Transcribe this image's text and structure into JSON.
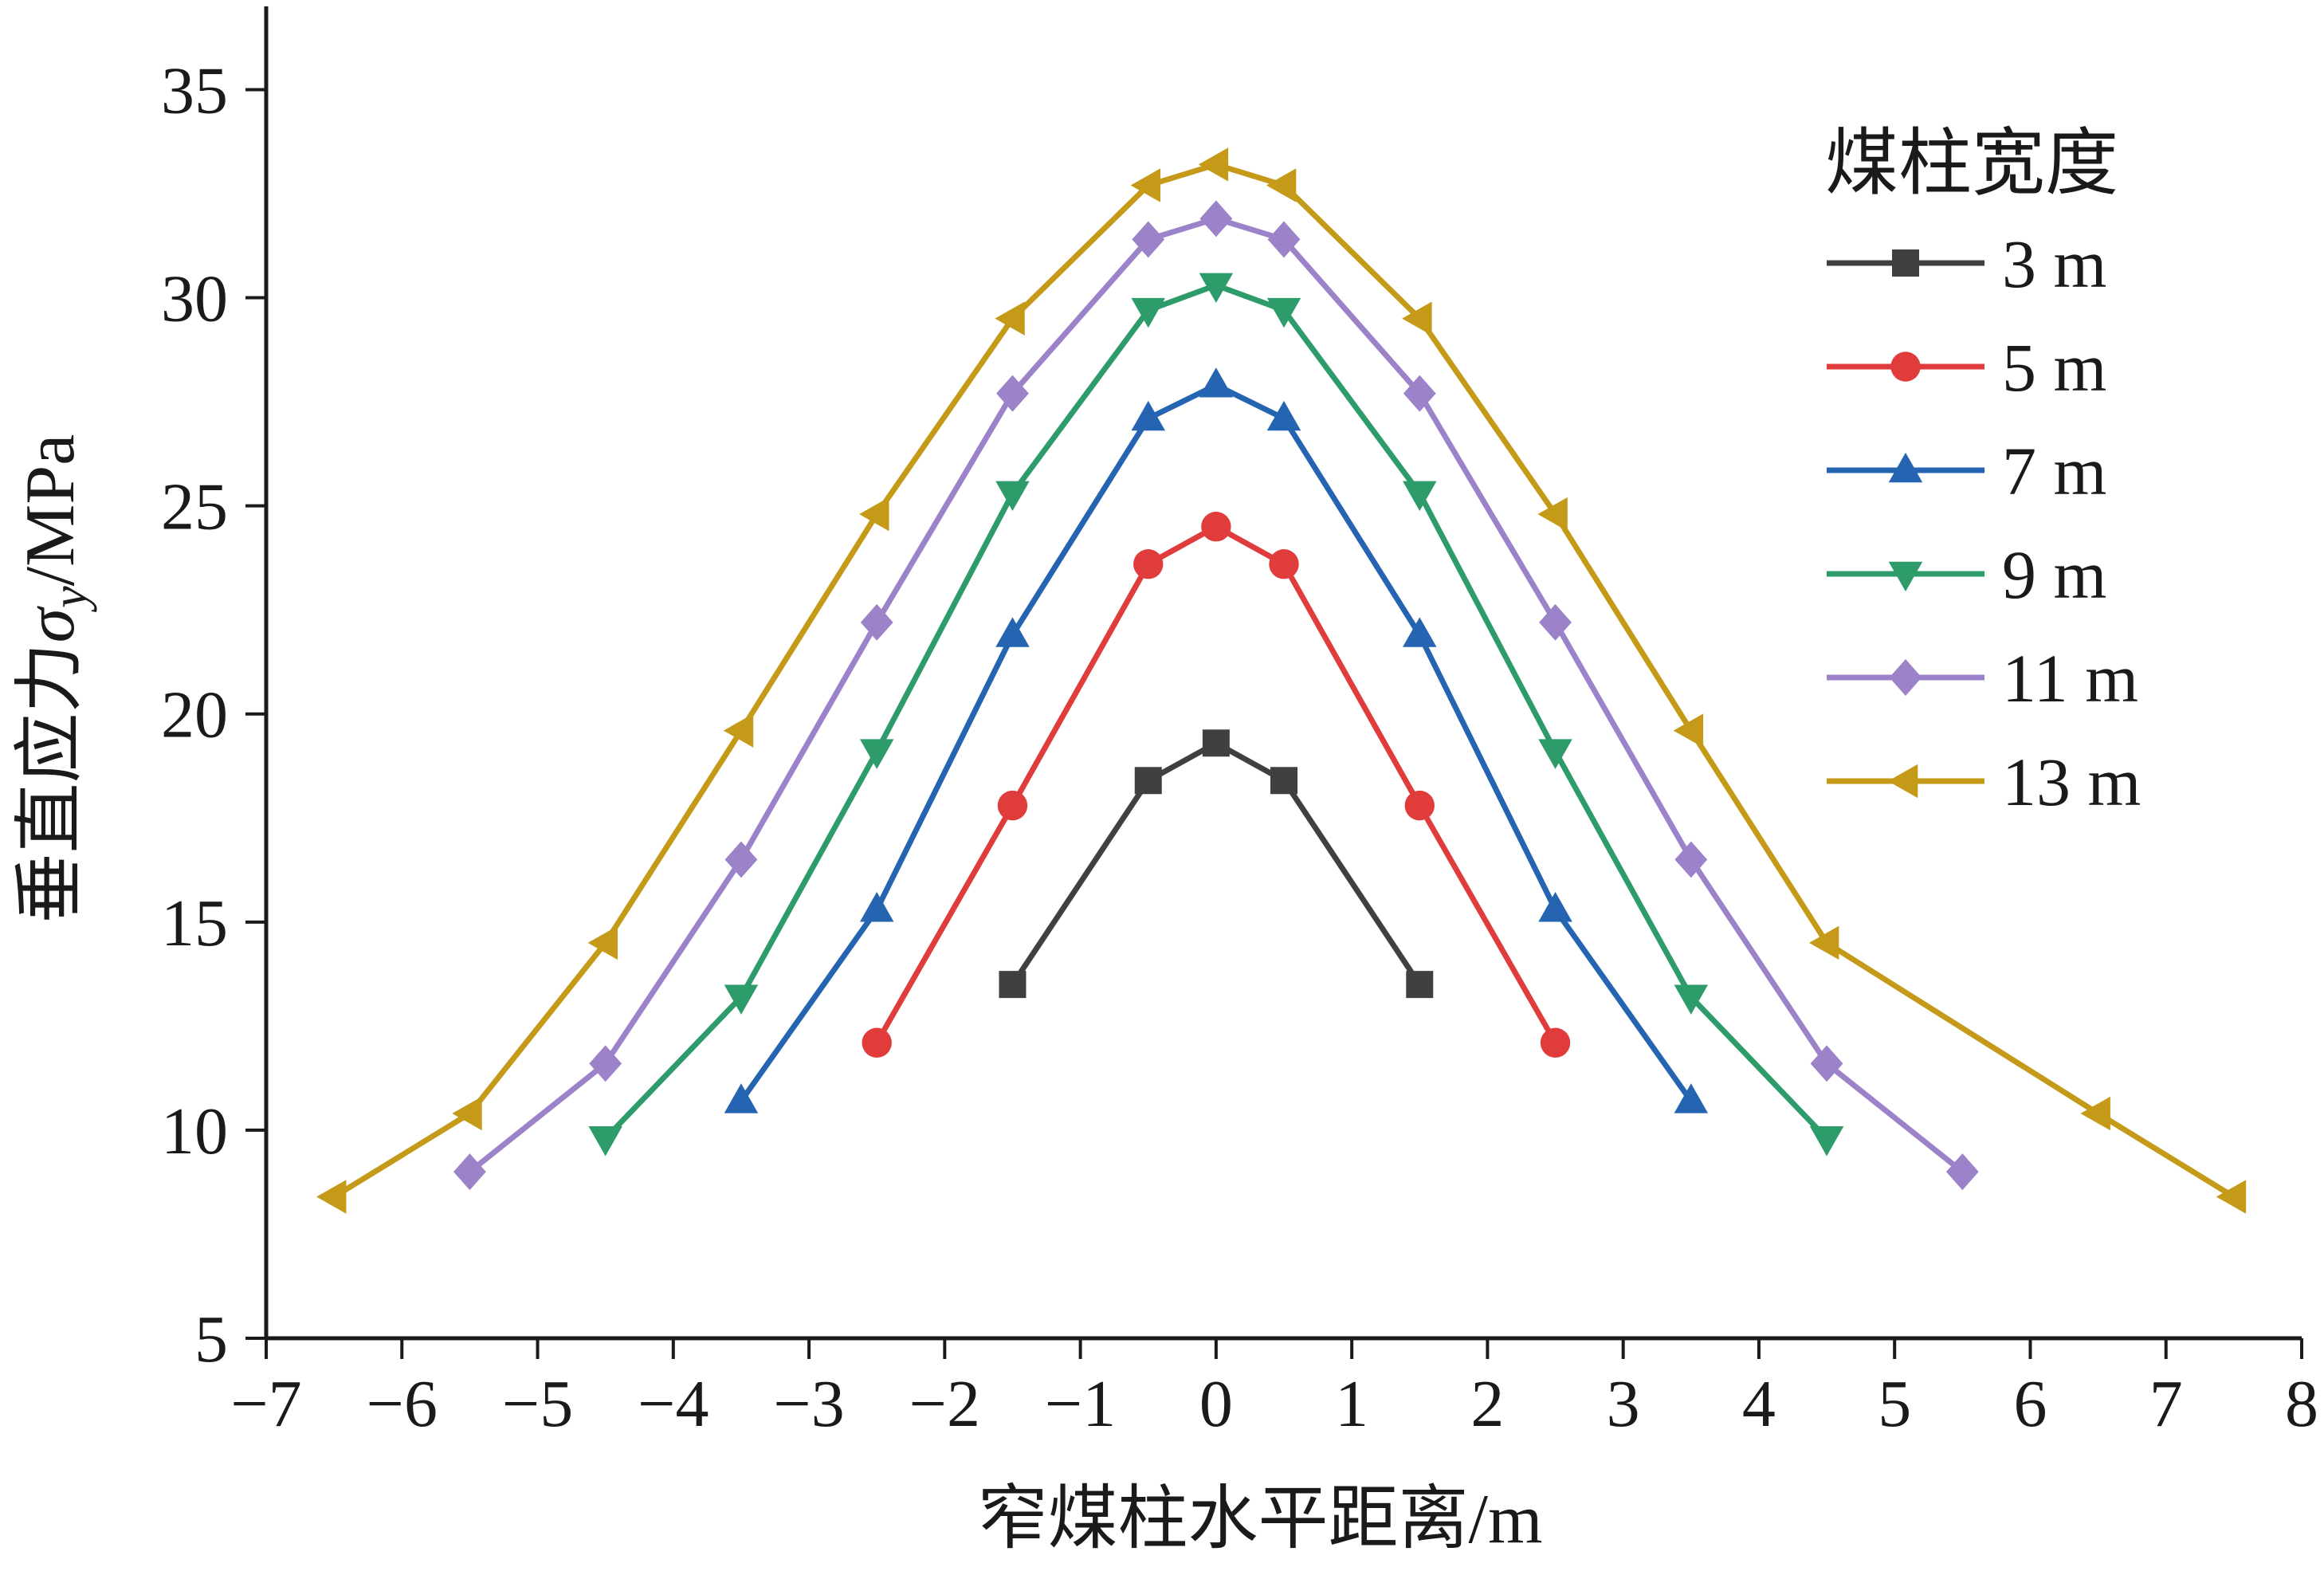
{
  "chart_data": {
    "type": "line",
    "xlabel": "窄煤柱水平距离/m",
    "ylabel": {
      "prefix": "垂直应力",
      "symbol": "σ",
      "subscript": "y",
      "suffix": "/MPa"
    },
    "xlim": [
      -7,
      8
    ],
    "ylim": [
      5,
      37
    ],
    "x_ticks": [
      -7,
      -6,
      -5,
      -4,
      -3,
      -2,
      -1,
      0,
      1,
      2,
      3,
      4,
      5,
      6,
      7,
      8
    ],
    "x_tick_labels": [
      "−7",
      "−6",
      "−5",
      "−4",
      "−3",
      "−2",
      "−1",
      "0",
      "1",
      "2",
      "3",
      "4",
      "5",
      "6",
      "7",
      "8"
    ],
    "y_ticks": [
      5,
      10,
      15,
      20,
      25,
      30,
      35
    ],
    "grid": false,
    "legend": {
      "title": "煤柱宽度",
      "placement": "top-right"
    },
    "series": [
      {
        "name": "3 m",
        "color": "#404040",
        "marker": "square",
        "points": [
          [
            -1.5,
            13.5
          ],
          [
            -0.5,
            18.4
          ],
          [
            0,
            19.3
          ],
          [
            0.5,
            18.4
          ],
          [
            1.5,
            13.5
          ]
        ]
      },
      {
        "name": "5 m",
        "color": "#e03c3c",
        "marker": "circle",
        "points": [
          [
            -2.5,
            12.1
          ],
          [
            -1.5,
            17.8
          ],
          [
            -0.5,
            23.6
          ],
          [
            0,
            24.5
          ],
          [
            0.5,
            23.6
          ],
          [
            1.5,
            17.8
          ],
          [
            2.5,
            12.1
          ]
        ]
      },
      {
        "name": "7 m",
        "color": "#2464b0",
        "marker": "triangle-up",
        "points": [
          [
            -3.5,
            10.7
          ],
          [
            -2.5,
            15.3
          ],
          [
            -1.5,
            21.9
          ],
          [
            -0.5,
            27.1
          ],
          [
            0,
            27.9
          ],
          [
            0.5,
            27.1
          ],
          [
            1.5,
            21.9
          ],
          [
            2.5,
            15.3
          ],
          [
            3.5,
            10.7
          ]
        ]
      },
      {
        "name": "9 m",
        "color": "#2e9b6a",
        "marker": "triangle-down",
        "points": [
          [
            -4.5,
            9.8
          ],
          [
            -3.5,
            13.2
          ],
          [
            -2.5,
            19.1
          ],
          [
            -1.5,
            25.3
          ],
          [
            -0.5,
            29.7
          ],
          [
            0,
            30.3
          ],
          [
            0.5,
            29.7
          ],
          [
            1.5,
            25.3
          ],
          [
            2.5,
            19.1
          ],
          [
            3.5,
            13.2
          ],
          [
            4.5,
            9.8
          ]
        ]
      },
      {
        "name": "11 m",
        "color": "#9c82c8",
        "marker": "diamond",
        "points": [
          [
            -5.5,
            9.0
          ],
          [
            -4.5,
            11.6
          ],
          [
            -3.5,
            16.5
          ],
          [
            -2.5,
            22.2
          ],
          [
            -1.5,
            27.7
          ],
          [
            -0.5,
            31.4
          ],
          [
            0,
            31.9
          ],
          [
            0.5,
            31.4
          ],
          [
            1.5,
            27.7
          ],
          [
            2.5,
            22.2
          ],
          [
            3.5,
            16.5
          ],
          [
            4.5,
            11.6
          ],
          [
            5.5,
            9.0
          ]
        ]
      },
      {
        "name": "13 m",
        "color": "#c49a18",
        "marker": "triangle-left",
        "points": [
          [
            -6.5,
            8.4
          ],
          [
            -5.5,
            10.4
          ],
          [
            -4.5,
            14.5
          ],
          [
            -3.5,
            19.6
          ],
          [
            -2.5,
            24.8
          ],
          [
            -1.5,
            29.5
          ],
          [
            -0.5,
            32.7
          ],
          [
            0,
            33.2
          ],
          [
            0.5,
            32.7
          ],
          [
            1.5,
            29.5
          ],
          [
            2.5,
            24.8
          ],
          [
            3.5,
            19.6
          ],
          [
            4.5,
            14.5
          ],
          [
            6.5,
            10.4
          ],
          [
            7.5,
            8.4
          ]
        ]
      }
    ]
  }
}
